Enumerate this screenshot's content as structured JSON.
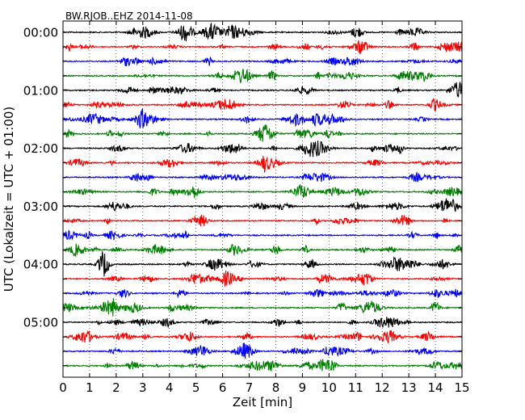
{
  "chart_data": {
    "type": "line",
    "title": "BW.RJOB..EHZ 2014-11-08",
    "xlabel": "Zeit  [min]",
    "ylabel": "UTC (Lokalzeit = UTC + 01:00)",
    "xlim": [
      0,
      15
    ],
    "x_ticks": [
      "0",
      "1",
      "2",
      "3",
      "4",
      "5",
      "6",
      "7",
      "8",
      "9",
      "10",
      "11",
      "12",
      "13",
      "14",
      "15"
    ],
    "y_tick_labels": [
      "00:00",
      "01:00",
      "02:00",
      "03:00",
      "04:00",
      "05:00"
    ],
    "trace_count": 24,
    "trace_interval_min": 15,
    "colors": [
      "#000000",
      "#ff0000",
      "#0000ff",
      "#008000"
    ],
    "grid": "vertical dotted"
  }
}
